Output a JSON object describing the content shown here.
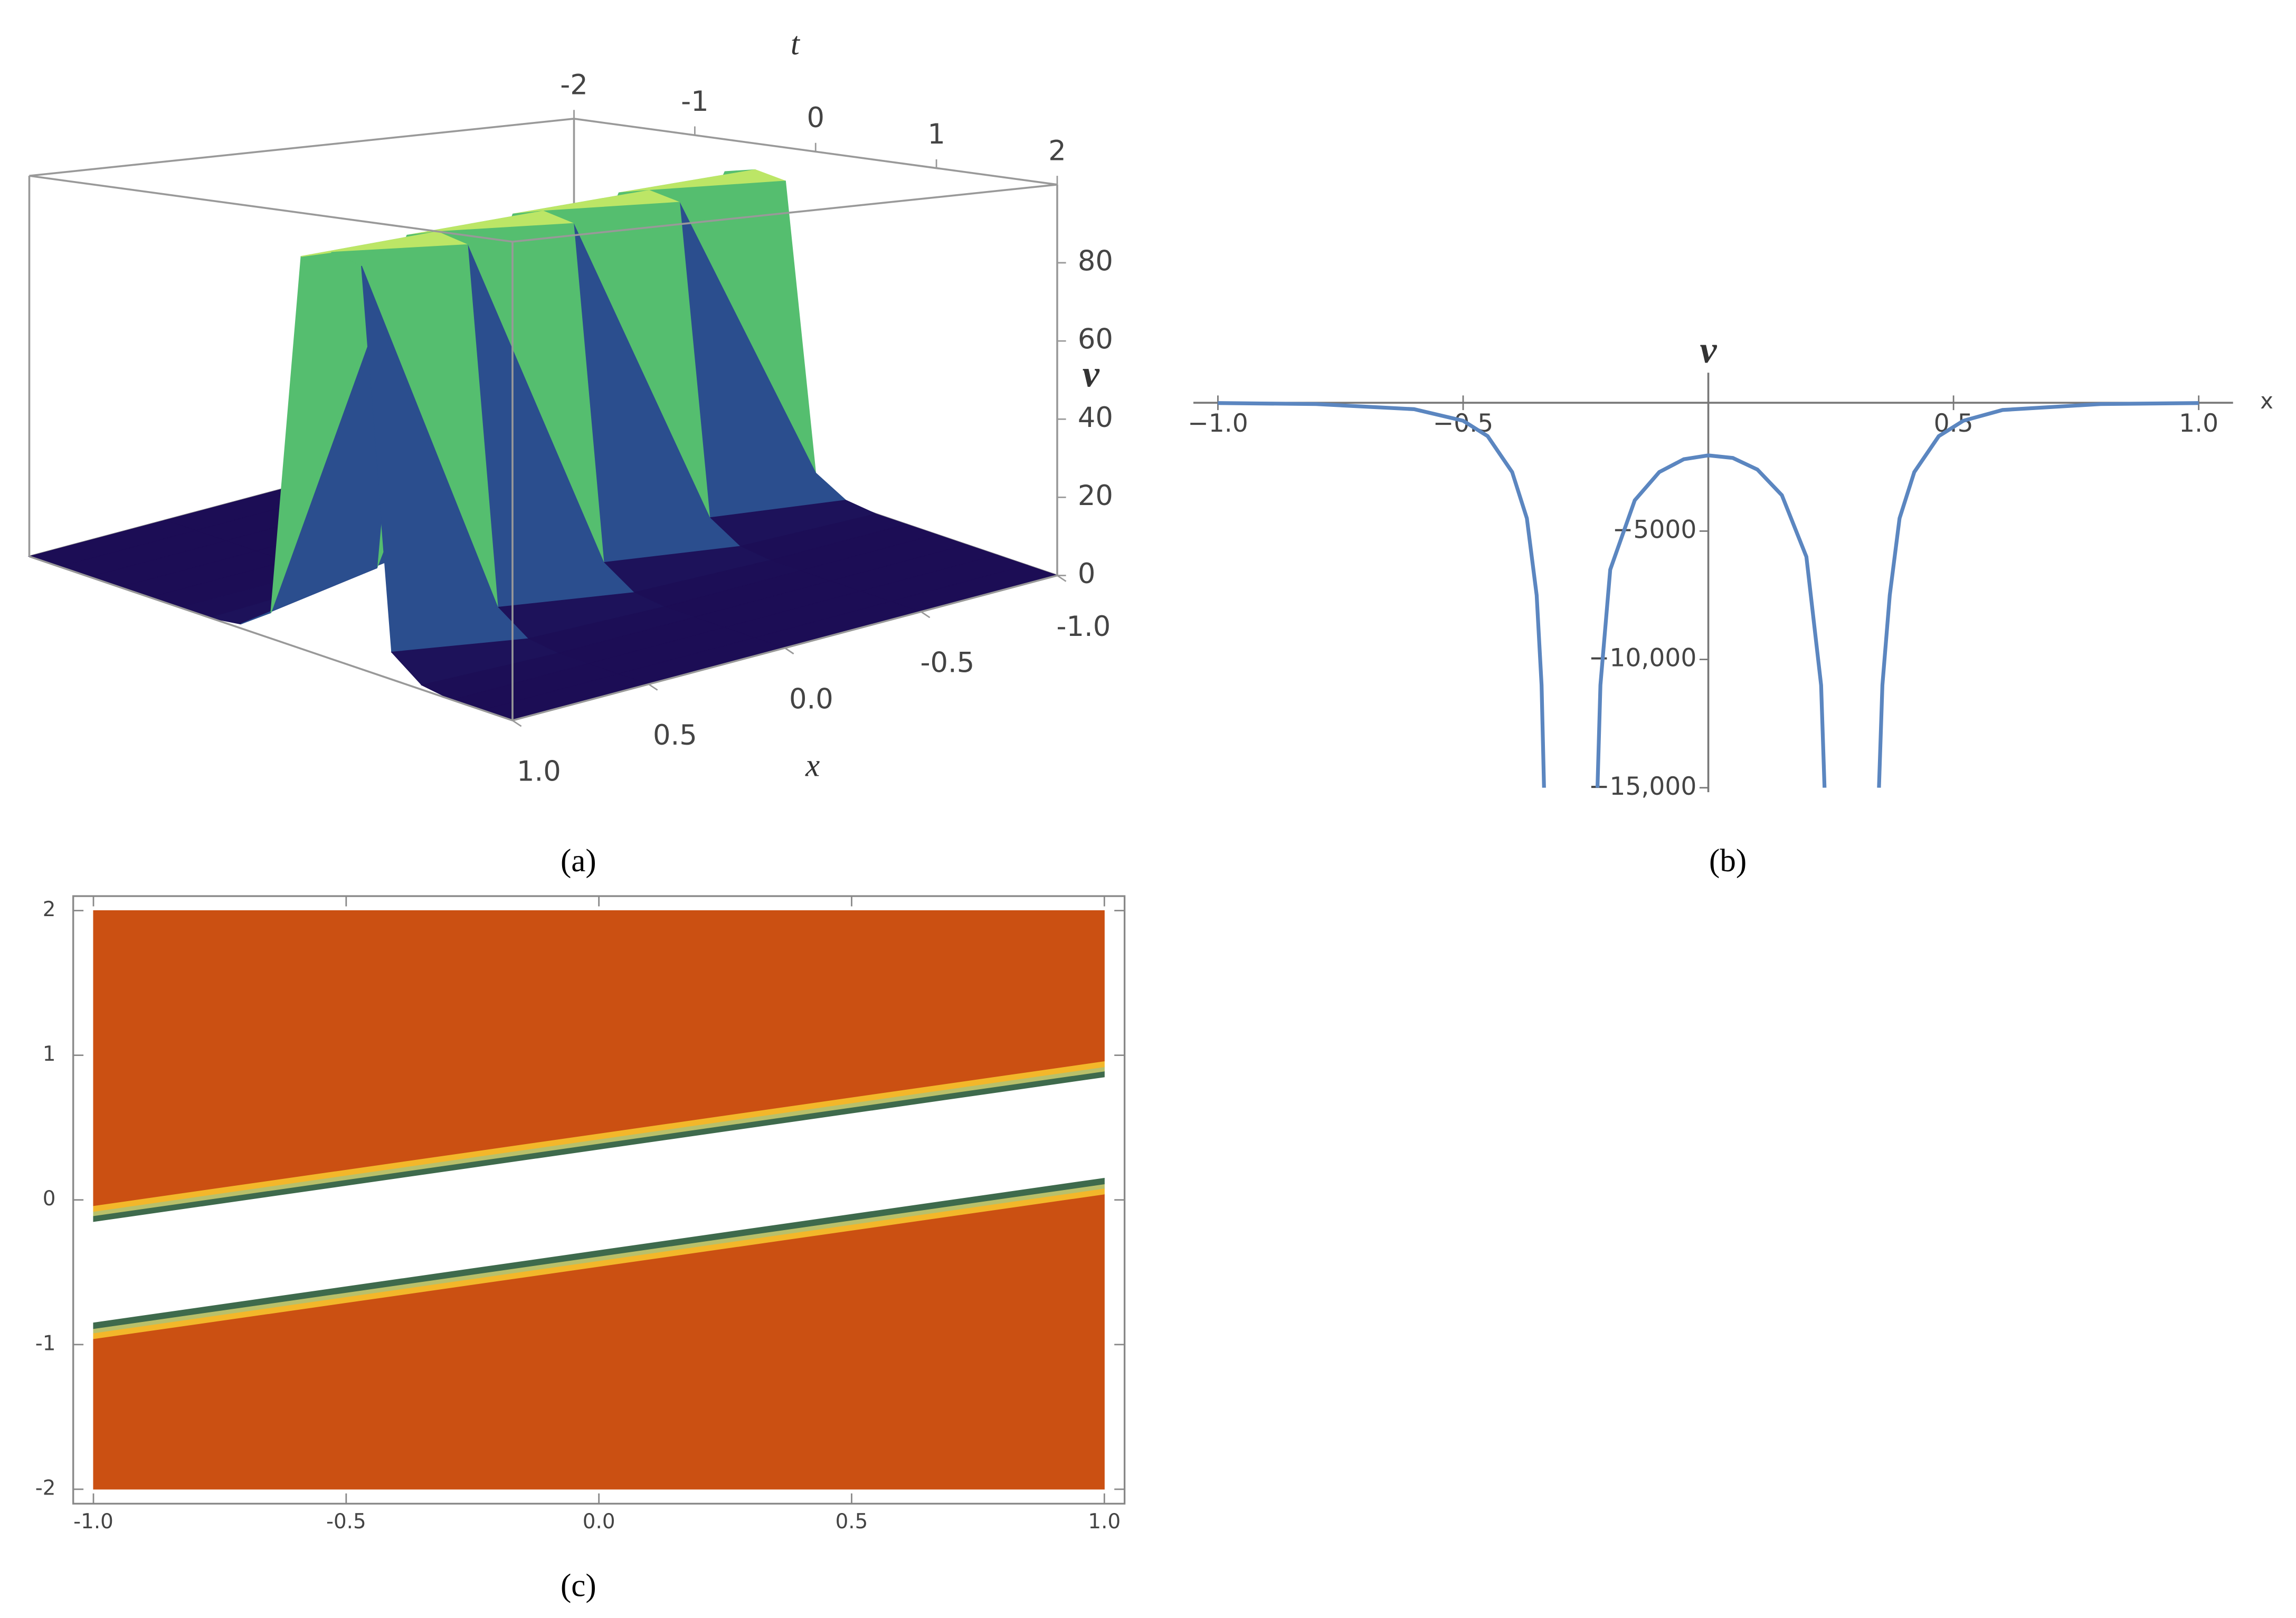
{
  "chart_data": [
    {
      "type": "surface3d",
      "caption": "(a)",
      "x_label": "x",
      "t_label": "t",
      "z_label": "v",
      "x": [
        -1,
        -0.5,
        0,
        0.5,
        1
      ],
      "t": [
        -2,
        -1.75,
        -1.5,
        -1.25,
        -1,
        -0.75,
        -0.5,
        -0.25,
        0,
        0.25,
        0.5,
        0.75,
        1,
        1.25,
        1.5,
        1.75,
        2
      ],
      "values": [
        [
          0,
          0,
          0,
          1,
          6,
          90,
          92,
          90,
          6,
          1,
          0,
          0,
          0,
          0,
          0,
          0,
          0
        ],
        [
          0,
          0,
          0,
          0,
          1,
          6,
          90,
          92,
          90,
          6,
          1,
          0,
          0,
          0,
          0,
          0,
          0
        ],
        [
          0,
          0,
          0,
          0,
          0,
          1,
          6,
          90,
          92,
          90,
          6,
          1,
          0,
          0,
          0,
          0,
          0
        ],
        [
          0,
          0,
          0,
          0,
          0,
          0,
          1,
          6,
          90,
          92,
          90,
          6,
          1,
          0,
          0,
          0,
          0
        ],
        [
          0,
          0,
          0,
          0,
          0,
          0,
          0,
          1,
          6,
          90,
          92,
          90,
          6,
          1,
          0,
          0,
          0
        ]
      ],
      "xlim": [
        -1,
        1
      ],
      "tlim": [
        -2,
        2
      ],
      "zlim": [
        0,
        100
      ],
      "xticks": [
        {
          "value": -1,
          "label": "-1.0"
        },
        {
          "value": -0.5,
          "label": "-0.5"
        },
        {
          "value": 0,
          "label": "0.0"
        },
        {
          "value": 0.5,
          "label": "0.5"
        },
        {
          "value": 1,
          "label": "1.0"
        }
      ],
      "tticks": [
        -2,
        -1,
        0,
        1,
        2
      ],
      "zticks": [
        0,
        20,
        40,
        60,
        80
      ],
      "colormap": [
        "#1c0d55",
        "#2b4c8e",
        "#22918b",
        "#63cb67",
        "#eef566"
      ]
    },
    {
      "type": "line",
      "caption": "(b)",
      "x_label": "x",
      "y_label": "v",
      "color": "#5b86c0",
      "x": [
        -1,
        -0.8,
        -0.6,
        -0.5,
        -0.45,
        -0.4,
        -0.37,
        -0.35,
        -0.34,
        -0.335,
        -0.3,
        -0.226,
        -0.22,
        -0.2,
        -0.15,
        -0.1,
        -0.05,
        0,
        0.05,
        0.1,
        0.15,
        0.2,
        0.23,
        0.237,
        0.3,
        0.348,
        0.355,
        0.37,
        0.39,
        0.42,
        0.47,
        0.52,
        0.6,
        0.8,
        1
      ],
      "values": [
        -10,
        -50,
        -250,
        -700,
        -1300,
        -2700,
        -4500,
        -7500,
        -11000,
        -15000,
        null,
        -15000,
        -11000,
        -6500,
        -3800,
        -2700,
        -2200,
        -2050,
        -2150,
        -2600,
        -3600,
        -6000,
        -11000,
        -15000,
        null,
        -15000,
        -11000,
        -7500,
        -4500,
        -2700,
        -1300,
        -700,
        -280,
        -50,
        -10
      ],
      "xlim": [
        -1.05,
        1.07
      ],
      "ylim": [
        -15000,
        1000
      ],
      "xticks": [
        {
          "value": -1,
          "label": "−1.0"
        },
        {
          "value": -0.5,
          "label": "−0.5"
        },
        {
          "value": 0.5,
          "label": "0.5"
        },
        {
          "value": 1,
          "label": "1.0"
        }
      ],
      "yticks": [
        {
          "value": -5000,
          "label": "−5000"
        },
        {
          "value": -10000,
          "label": "−10,000"
        },
        {
          "value": -15000,
          "label": "−15,000"
        }
      ]
    },
    {
      "type": "contour",
      "caption": "(c)",
      "xlim": [
        -1.04,
        1.04
      ],
      "ylim": [
        -2.1,
        2.1
      ],
      "band_x": [
        -1,
        1
      ],
      "xticks": [
        {
          "value": -1,
          "label": "-1.0"
        },
        {
          "value": -0.5,
          "label": "-0.5"
        },
        {
          "value": 0,
          "label": "0.0"
        },
        {
          "value": 0.5,
          "label": "0.5"
        },
        {
          "value": 1,
          "label": "1.0"
        }
      ],
      "yticks": [
        -2,
        -1,
        0,
        1,
        2
      ],
      "bands": [
        {
          "color": "#cb5012",
          "lower": [
            -2,
            -2
          ],
          "upper": [
            -0.96,
            0.04
          ]
        },
        {
          "color": "#f3b72a",
          "lower": [
            -0.96,
            0.04
          ],
          "upper": [
            -0.92,
            0.08
          ]
        },
        {
          "color": "#b9c06a",
          "lower": [
            -0.92,
            0.08
          ],
          "upper": [
            -0.89,
            0.11
          ]
        },
        {
          "color": "#3e6a4c",
          "lower": [
            -0.89,
            0.11
          ],
          "upper": [
            -0.85,
            0.15
          ]
        },
        {
          "color": "#3e6a4c",
          "lower": [
            -0.15,
            0.85
          ],
          "upper": [
            -0.11,
            0.89
          ]
        },
        {
          "color": "#b9c06a",
          "lower": [
            -0.11,
            0.89
          ],
          "upper": [
            -0.08,
            0.92
          ]
        },
        {
          "color": "#f3b72a",
          "lower": [
            -0.08,
            0.92
          ],
          "upper": [
            -0.04,
            0.96
          ]
        },
        {
          "color": "#cb5012",
          "lower": [
            -0.04,
            0.96
          ],
          "upper": [
            2,
            2
          ]
        }
      ]
    }
  ]
}
